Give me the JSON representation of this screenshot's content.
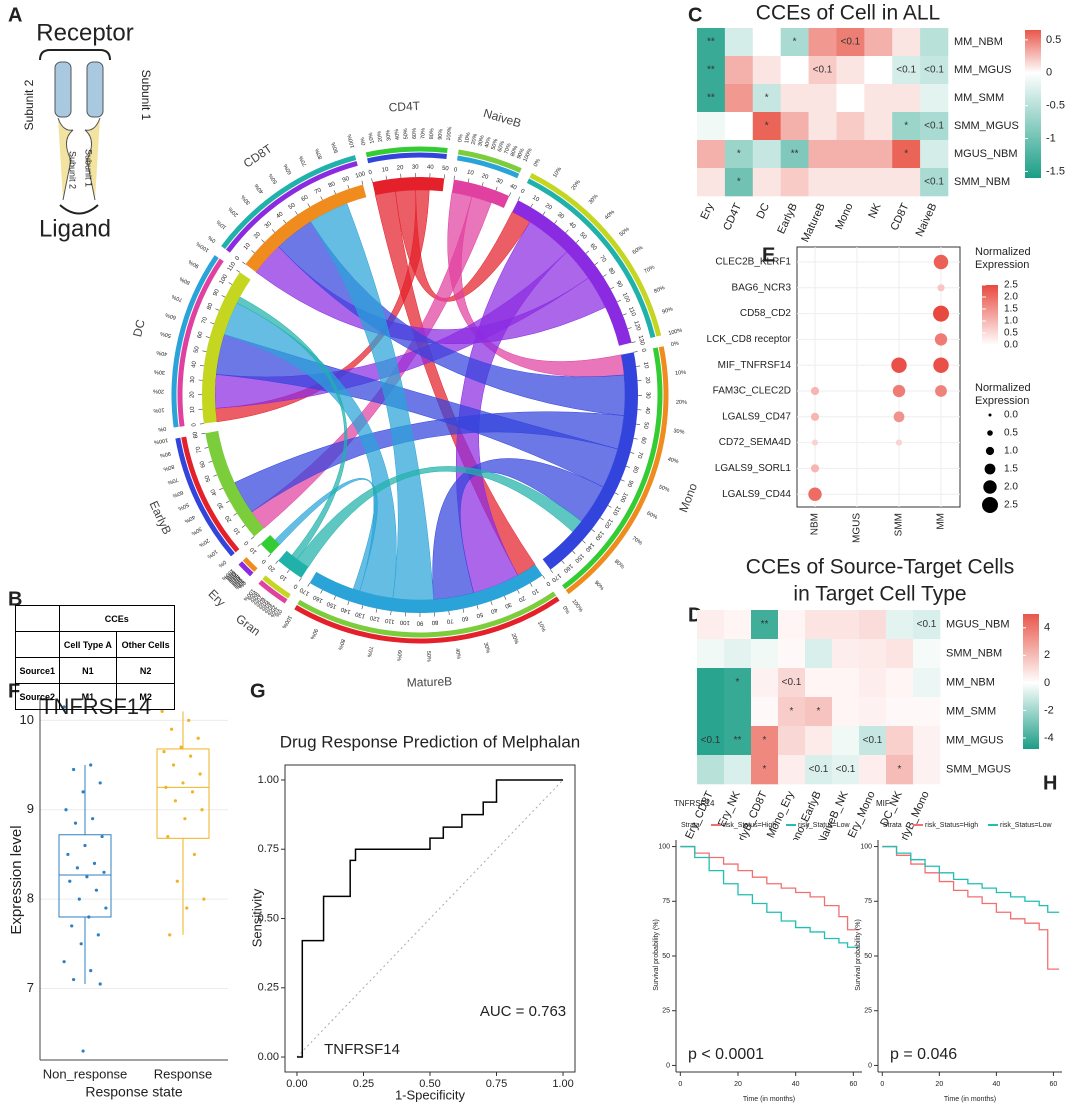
{
  "panel_labels": [
    "A",
    "B",
    "C",
    "D",
    "E",
    "F",
    "G",
    "H"
  ],
  "schematic": {
    "receptor": "Receptor",
    "ligand": "Ligand",
    "subunit_1": "Subunit 1",
    "subunit_2": "Subunit 2"
  },
  "table": {
    "header": "CCEs",
    "columns": [
      "Cell Type A",
      "Other Cells"
    ],
    "rows": [
      [
        "Source1",
        "N1",
        "N2"
      ],
      [
        "Source2",
        "M1",
        "M2"
      ]
    ]
  },
  "chart_data": [
    {
      "type": "chord",
      "sectors": [
        "CD4T",
        "NaiveB",
        null,
        "Mono",
        "MatureB",
        "Gran",
        "Ery",
        "EarlyB",
        "DC",
        "CD8T"
      ],
      "values": [
        50,
        40,
        130,
        170,
        170,
        20,
        10,
        80,
        110,
        100
      ],
      "colors": [
        "#e4202a",
        "#e040a0",
        "#8a2be2",
        "#3344dd",
        "#29a3d8",
        "#20b2aa",
        "#33cc33",
        "#7ccd3c",
        "#c5d620",
        "#f08c1e"
      ],
      "axis_ticks": [
        0,
        10,
        20,
        30,
        40,
        50,
        60,
        70,
        80,
        90,
        100,
        110,
        120,
        130,
        140,
        150,
        160,
        170
      ],
      "percent_ticks": [
        {
          "value": 0,
          "label": "0%"
        },
        {
          "value": 10,
          "label": "10%"
        },
        {
          "value": 20,
          "label": "20%"
        },
        {
          "value": 30,
          "label": "30%"
        },
        {
          "value": 40,
          "label": "40%"
        },
        {
          "value": 50,
          "label": "50%"
        },
        {
          "value": 60,
          "label": "60%"
        },
        {
          "value": 70,
          "label": "70%"
        },
        {
          "value": 80,
          "label": "80%"
        },
        {
          "value": 90,
          "label": "90%"
        },
        {
          "value": 100,
          "label": "100%"
        }
      ],
      "links": {
        "source": [
          0,
          0,
          0,
          1,
          1,
          2,
          2,
          2,
          3,
          3,
          3,
          3,
          4,
          4,
          4,
          5,
          5
        ],
        "target": [
          4,
          2,
          8,
          3,
          7,
          4,
          8,
          9,
          9,
          7,
          8,
          4,
          9,
          8,
          6,
          3,
          8
        ],
        "values": [
          15,
          15,
          10,
          15,
          15,
          35,
          25,
          25,
          30,
          25,
          30,
          30,
          30,
          25,
          5,
          10,
          5
        ]
      }
    },
    {
      "type": "heatmap",
      "title": "CCEs of Cell in ALL",
      "x": [
        "Ery",
        "CD4T",
        "DC",
        "EarlyB",
        "MatureB",
        "Mono",
        "NK",
        "CD8T",
        "NaiveB"
      ],
      "y": [
        "MM_NBM",
        "MM_MGUS",
        "MM_SMM",
        "SMM_MGUS",
        "MGUS_NBM",
        "SMM_NBM"
      ],
      "values": [
        [
          -1.4,
          -0.3,
          0.0,
          -0.6,
          0.4,
          0.5,
          0.3,
          0.1,
          -0.5
        ],
        [
          -1.4,
          0.3,
          0.1,
          0.0,
          0.2,
          0.1,
          0.0,
          -0.3,
          -0.4
        ],
        [
          -1.4,
          0.4,
          -0.4,
          0.1,
          0.1,
          0.0,
          0.1,
          0.1,
          -0.2
        ],
        [
          -0.1,
          0.0,
          0.6,
          0.3,
          0.1,
          0.2,
          0.1,
          -0.7,
          -0.6
        ],
        [
          0.3,
          -0.7,
          -0.4,
          -0.9,
          0.3,
          0.3,
          0.3,
          0.6,
          -0.3
        ],
        [
          0.1,
          -1.0,
          0.1,
          0.2,
          0.1,
          0.1,
          0.1,
          0.1,
          -0.6
        ]
      ],
      "annotations": [
        [
          "**",
          null,
          null,
          "*",
          null,
          "<0.1",
          null,
          null,
          null
        ],
        [
          "**",
          null,
          null,
          null,
          "<0.1",
          null,
          null,
          "<0.1",
          "<0.1"
        ],
        [
          "**",
          null,
          "*",
          null,
          null,
          null,
          null,
          null,
          null
        ],
        [
          null,
          null,
          "*",
          null,
          null,
          null,
          null,
          "*",
          "<0.1"
        ],
        [
          null,
          "*",
          null,
          "**",
          null,
          null,
          null,
          "*",
          null
        ],
        [
          null,
          "*",
          null,
          null,
          null,
          null,
          null,
          null,
          "<0.1"
        ]
      ],
      "zlim": [
        -1.6,
        0.65
      ],
      "zticks": [
        0.5,
        0,
        -0.5,
        -1,
        -1.5
      ],
      "colors": [
        "#1b9e86",
        "#ffffff",
        "#e8574a"
      ]
    },
    {
      "type": "dotplot",
      "x": [
        "NBM",
        "MGUS",
        "SMM",
        "MM"
      ],
      "y": [
        "CLEC2B_KLRF1",
        "BAG6_NCR3",
        "CD58_CD2",
        "LCK_CD8 receptor",
        "MIF_TNFRSF14",
        "FAM3C_CLEC2D",
        "LGALS9_CD47",
        "CD72_SEMA4D",
        "LGALS9_SORL1",
        "LGALS9_CD44"
      ],
      "values": [
        [
          null,
          null,
          null,
          2.2
        ],
        [
          null,
          null,
          null,
          0.8
        ],
        [
          null,
          null,
          null,
          2.5
        ],
        [
          null,
          null,
          null,
          1.8
        ],
        [
          null,
          null,
          2.4,
          2.4
        ],
        [
          1.0,
          null,
          1.8,
          1.7
        ],
        [
          1.0,
          null,
          1.5,
          null
        ],
        [
          0.6,
          null,
          0.6,
          null
        ],
        [
          1.0,
          null,
          null,
          null
        ],
        [
          2.0,
          null,
          null,
          null
        ]
      ],
      "legend_title": "Normalized Expression",
      "zlim": [
        0,
        2.5
      ],
      "zticks": [
        {
          "value": 2.5,
          "label": "2.5"
        },
        {
          "value": 2,
          "label": "2.0"
        },
        {
          "value": 1.5,
          "label": "1.5"
        },
        {
          "value": 1,
          "label": "1.0"
        },
        {
          "value": 0.5,
          "label": "0.5"
        },
        {
          "value": 0,
          "label": "0.0"
        }
      ],
      "size_ticks": [
        {
          "value": 0,
          "label": "0.0"
        },
        {
          "value": 0.5,
          "label": "0.5"
        },
        {
          "value": 1,
          "label": "1.0"
        },
        {
          "value": 1.5,
          "label": "1.5"
        },
        {
          "value": 2,
          "label": "2.0"
        },
        {
          "value": 2.5,
          "label": "2.5"
        }
      ],
      "colors": [
        "#ffffff",
        "#e8493f"
      ]
    },
    {
      "type": "heatmap",
      "title_lines": [
        "CCEs of Source-Target Cells",
        "in Target Cell Type"
      ],
      "x": [
        "Ery_CD8T",
        "Ery_NK",
        "EarlyB_CD8T",
        "Mono_Ery",
        "Mono_EarlyB",
        "NaiveB_NK",
        "Ery_Mono",
        "DC_NK",
        "EarlyB_Mono"
      ],
      "y": [
        "MGUS_NBM",
        "SMM_NBM",
        "MM_NBM",
        "MM_SMM",
        "MM_MGUS",
        "SMM_MGUS"
      ],
      "values": [
        [
          0.5,
          0.3,
          -4,
          0.3,
          0.8,
          0.8,
          1.0,
          -0.6,
          -0.8
        ],
        [
          -0.3,
          -0.6,
          -0.3,
          0.2,
          -0.8,
          0.5,
          0.6,
          0.8,
          -0.2
        ],
        [
          -4.5,
          -4.2,
          0.4,
          1.2,
          0.3,
          0.3,
          0.5,
          0.3,
          -0.4
        ],
        [
          -4.5,
          -4.2,
          0.2,
          1.5,
          1.8,
          0.3,
          0.4,
          0.2,
          0.2
        ],
        [
          -4.5,
          -4.2,
          3.5,
          1.2,
          0.6,
          -0.3,
          -1.2,
          1.4,
          0.4
        ],
        [
          -1.5,
          -0.8,
          3.5,
          0.5,
          -0.8,
          -0.6,
          0.5,
          2.0,
          0.4
        ]
      ],
      "annotations": [
        [
          null,
          null,
          "**",
          null,
          null,
          null,
          null,
          null,
          "<0.1"
        ],
        [
          null,
          null,
          null,
          null,
          null,
          null,
          null,
          null,
          null
        ],
        [
          null,
          "*",
          null,
          "<0.1",
          null,
          null,
          null,
          null,
          null
        ],
        [
          null,
          null,
          null,
          "*",
          "*",
          null,
          null,
          null,
          null
        ],
        [
          "<0.1",
          "**",
          "*",
          null,
          null,
          null,
          "<0.1",
          null,
          null
        ],
        [
          null,
          null,
          "*",
          null,
          "<0.1",
          "<0.1",
          null,
          "*",
          null
        ]
      ],
      "zlim": [
        -4.8,
        5
      ],
      "zticks": [
        4,
        2,
        0,
        -2,
        -4
      ],
      "colors": [
        "#1b9e86",
        "#ffffff",
        "#e8574a"
      ]
    },
    {
      "type": "box",
      "title": "TNFRSF14",
      "xlabel": "Response state",
      "ylabel": "Expression level",
      "categories": [
        "Non_response",
        "Response"
      ],
      "colors": [
        "#2f7fc1",
        "#f0b323"
      ],
      "min": [
        7.05,
        7.6
      ],
      "q1": [
        7.8,
        8.68
      ],
      "median": [
        8.27,
        9.25
      ],
      "q3": [
        8.72,
        9.68
      ],
      "max": [
        9.5,
        10.1
      ],
      "points": [
        [
          10.15,
          9.5,
          9.45,
          9.3,
          9.2,
          9.0,
          8.9,
          8.85,
          8.7,
          8.6,
          8.5,
          8.4,
          8.35,
          8.3,
          8.25,
          8.2,
          8.1,
          8.0,
          7.9,
          7.8,
          7.7,
          7.6,
          7.5,
          7.3,
          7.2,
          7.1,
          7.05,
          6.3
        ],
        [
          10.1,
          10.0,
          9.9,
          9.8,
          9.7,
          9.65,
          9.6,
          9.5,
          9.4,
          9.3,
          9.25,
          9.2,
          9.1,
          9.0,
          8.9,
          8.7,
          8.5,
          8.2,
          8.0,
          7.9,
          7.6
        ]
      ],
      "ylim": [
        6.2,
        10.25
      ],
      "yticks": [
        7,
        8,
        9,
        10
      ]
    },
    {
      "type": "line",
      "title": "Drug Response Prediction of Melphalan",
      "xlabel": "1-Specificity",
      "ylabel": "Sensitivity",
      "annotation": "AUC = 0.763",
      "series_label": "TNFRSF14",
      "color": "#000000",
      "x": [
        0,
        0.02,
        0.02,
        0.1,
        0.1,
        0.2,
        0.2,
        0.22,
        0.22,
        0.5,
        0.5,
        0.55,
        0.55,
        0.62,
        0.62,
        0.7,
        0.7,
        0.75,
        0.75,
        1
      ],
      "values": [
        0,
        0,
        0.42,
        0.42,
        0.58,
        0.58,
        0.71,
        0.71,
        0.75,
        0.75,
        0.79,
        0.79,
        0.83,
        0.83,
        0.875,
        0.875,
        0.92,
        0.92,
        1,
        1
      ],
      "xlim": [
        -0.045,
        1.045
      ],
      "ylim": [
        -0.054,
        1.054
      ],
      "xticks": [
        {
          "value": 0,
          "label": "0.00"
        },
        {
          "value": 0.25,
          "label": "0.25"
        },
        {
          "value": 0.5,
          "label": "0.50"
        },
        {
          "value": 0.75,
          "label": "0.75"
        },
        {
          "value": 1,
          "label": "1.00"
        }
      ],
      "yticks": [
        {
          "value": 0,
          "label": "0.00"
        },
        {
          "value": 0.25,
          "label": "0.25"
        },
        {
          "value": 0.5,
          "label": "0.50"
        },
        {
          "value": 0.75,
          "label": "0.75"
        },
        {
          "value": 1,
          "label": "1.00"
        }
      ]
    },
    {
      "type": "km",
      "title": "TNFRSF14",
      "legend_title": "Strata",
      "annotation": "p < 0.0001",
      "xlabel": "Time (in months)",
      "ylabel": "Survival probability (%)",
      "x": [
        0,
        5,
        10,
        15,
        20,
        25,
        30,
        35,
        40,
        45,
        50,
        55,
        58,
        62
      ],
      "series": [
        {
          "name": "risk_Status=High",
          "color": "#f07070",
          "values": [
            100,
            97,
            95,
            92,
            89,
            86,
            83,
            81,
            79,
            77,
            73,
            68,
            62,
            62
          ]
        },
        {
          "name": "risk_Status=Low",
          "color": "#1fbfb4",
          "values": [
            100,
            95,
            89,
            83,
            78,
            74,
            70,
            66,
            63,
            61,
            58,
            56,
            54,
            54
          ]
        }
      ],
      "xlim": [
        -1.5,
        63
      ],
      "ylim": [
        -3,
        103
      ],
      "xticks": [
        0,
        20,
        40,
        60
      ],
      "yticks": [
        0,
        25,
        50,
        75,
        100
      ]
    },
    {
      "type": "km",
      "title": "MIF",
      "legend_title": "Strata",
      "annotation": "p = 0.046",
      "xlabel": "Time (in months)",
      "ylabel": "Survival probability (%)",
      "x": [
        0,
        5,
        10,
        15,
        20,
        25,
        30,
        35,
        40,
        45,
        50,
        55,
        58,
        62
      ],
      "series": [
        {
          "name": "risk_Status=High",
          "color": "#f07070",
          "values": [
            100,
            96,
            92,
            88,
            84,
            80,
            77,
            74,
            70,
            67,
            65,
            62,
            44,
            44
          ]
        },
        {
          "name": "risk_Status=Low",
          "color": "#1fbfb4",
          "values": [
            100,
            97,
            94,
            91,
            88,
            85,
            83,
            81,
            79,
            77,
            75,
            73,
            70,
            70
          ]
        }
      ],
      "xlim": [
        -1.5,
        63
      ],
      "ylim": [
        -3,
        103
      ],
      "xticks": [
        0,
        20,
        40,
        60
      ],
      "yticks": [
        0,
        25,
        50,
        75,
        100
      ]
    }
  ]
}
